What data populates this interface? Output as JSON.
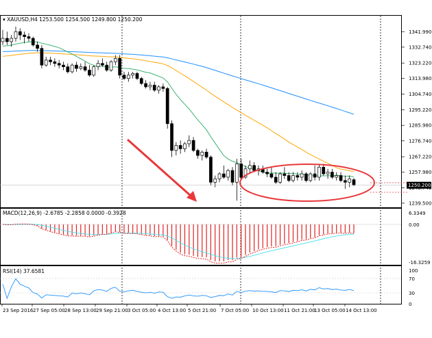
{
  "window": {
    "symbol_title": "XAUUSD,H4",
    "ohlc_text": "1253.500 1254.500 1249.800 1250.200",
    "current_price_label": "1250.200"
  },
  "price_axis": {
    "labels": [
      "1341.990",
      "1332.740",
      "1323.220",
      "1313.980",
      "1304.740",
      "1295.220",
      "1285.980",
      "1276.740",
      "1267.220",
      "1257.980",
      "1248.740",
      "1239.500"
    ]
  },
  "macd": {
    "title": "MACD(12,26,9) -2.6785 -2.2858 0.0000 -0.3928",
    "axis_labels": [
      "6.3349",
      "0.00",
      "-16.3259"
    ]
  },
  "rsi": {
    "title": "RSI(14) 37.6581",
    "axis_labels": [
      "100",
      "70",
      "30",
      "0"
    ]
  },
  "time_axis": {
    "labels": [
      "23 Sep 2016",
      "27 Sep 05:00",
      "28 Sep 13:00",
      "29 Sep 21:00",
      "3 Oct 05:00",
      "4 Oct 13:00",
      "5 Oct 21:00",
      "7 Oct 05:00",
      "10 Oct 13:00",
      "11 Oct 21:00",
      "13 Oct 05:00",
      "14 Oct 13:00"
    ]
  },
  "colors": {
    "ma_fast": "#3cb371",
    "ma_mid": "#ffa500",
    "ma_slow": "#1e90ff",
    "annotation": "#e8383a",
    "macd_pos": "#2ca02c",
    "macd_neg": "#e02020",
    "signal": "#40e0f0"
  },
  "chart_data": {
    "type": "candlestick",
    "series": [
      {
        "name": "XAUUSD,H4",
        "values_open_high_low_close": [
          [
            1336.0,
            1343.0,
            1334.0,
            1338.0
          ],
          [
            1338.0,
            1342.0,
            1334.0,
            1336.0
          ],
          [
            1336.0,
            1340.0,
            1333.0,
            1338.0
          ],
          [
            1338.0,
            1345.0,
            1336.0,
            1342.0
          ],
          [
            1342.0,
            1344.0,
            1337.0,
            1340.0
          ],
          [
            1340.0,
            1342.0,
            1335.0,
            1339.0
          ],
          [
            1339.0,
            1341.0,
            1336.0,
            1338.0
          ],
          [
            1338.0,
            1339.0,
            1333.0,
            1334.0
          ],
          [
            1334.0,
            1336.0,
            1330.0,
            1332.0
          ],
          [
            1332.0,
            1334.0,
            1320.0,
            1322.0
          ],
          [
            1322.0,
            1327.0,
            1321.0,
            1325.0
          ],
          [
            1325.0,
            1327.0,
            1322.0,
            1324.0
          ],
          [
            1324.0,
            1326.0,
            1321.0,
            1323.0
          ],
          [
            1323.0,
            1325.0,
            1320.0,
            1322.0
          ],
          [
            1322.0,
            1324.0,
            1319.0,
            1321.0
          ],
          [
            1321.0,
            1323.0,
            1317.0,
            1318.0
          ],
          [
            1318.0,
            1323.0,
            1317.0,
            1322.0
          ],
          [
            1322.0,
            1324.0,
            1318.0,
            1320.0
          ],
          [
            1320.0,
            1323.0,
            1319.0,
            1321.0
          ],
          [
            1321.0,
            1324.0,
            1318.0,
            1319.0
          ],
          [
            1319.0,
            1322.0,
            1315.0,
            1316.0
          ],
          [
            1316.0,
            1322.0,
            1315.0,
            1321.0
          ],
          [
            1321.0,
            1325.0,
            1319.0,
            1323.0
          ],
          [
            1323.0,
            1326.0,
            1321.0,
            1322.0
          ],
          [
            1322.0,
            1324.0,
            1318.0,
            1319.0
          ],
          [
            1319.0,
            1325.0,
            1318.0,
            1324.0
          ],
          [
            1324.0,
            1328.0,
            1322.0,
            1326.0
          ],
          [
            1326.0,
            1328.0,
            1314.0,
            1316.0
          ],
          [
            1316.0,
            1318.0,
            1313.0,
            1314.0
          ],
          [
            1314.0,
            1318.0,
            1312.0,
            1316.0
          ],
          [
            1316.0,
            1318.0,
            1314.0,
            1317.0
          ],
          [
            1317.0,
            1318.0,
            1313.0,
            1314.0
          ],
          [
            1314.0,
            1315.0,
            1310.0,
            1311.0
          ],
          [
            1311.0,
            1313.0,
            1308.0,
            1309.0
          ],
          [
            1309.0,
            1312.0,
            1307.0,
            1310.0
          ],
          [
            1310.0,
            1312.0,
            1306.0,
            1307.0
          ],
          [
            1307.0,
            1310.0,
            1305.0,
            1309.0
          ],
          [
            1309.0,
            1311.0,
            1306.0,
            1308.0
          ],
          [
            1308.0,
            1309.0,
            1284.0,
            1287.0
          ],
          [
            1287.0,
            1289.0,
            1267.0,
            1271.0
          ],
          [
            1271.0,
            1276.0,
            1268.0,
            1274.0
          ],
          [
            1274.0,
            1277.0,
            1269.0,
            1272.0
          ],
          [
            1272.0,
            1276.0,
            1270.0,
            1275.0
          ],
          [
            1275.0,
            1280.0,
            1273.0,
            1277.0
          ],
          [
            1277.0,
            1279.0,
            1270.0,
            1271.0
          ],
          [
            1271.0,
            1272.0,
            1266.0,
            1268.0
          ],
          [
            1268.0,
            1271.0,
            1265.0,
            1270.0
          ],
          [
            1270.0,
            1272.0,
            1266.0,
            1267.0
          ],
          [
            1267.0,
            1268.0,
            1250.0,
            1252.0
          ],
          [
            1252.0,
            1256.0,
            1249.0,
            1254.0
          ],
          [
            1254.0,
            1258.0,
            1252.0,
            1257.0
          ],
          [
            1257.0,
            1262.0,
            1254.0,
            1255.0
          ],
          [
            1255.0,
            1260.0,
            1253.0,
            1259.0
          ],
          [
            1259.0,
            1261.0,
            1250.0,
            1252.0
          ],
          [
            1252.0,
            1266.0,
            1241.0,
            1263.0
          ],
          [
            1263.0,
            1266.0,
            1253.0,
            1255.0
          ],
          [
            1255.0,
            1262.0,
            1254.0,
            1260.0
          ],
          [
            1260.0,
            1265.0,
            1257.0,
            1262.0
          ],
          [
            1262.0,
            1264.0,
            1258.0,
            1259.0
          ],
          [
            1259.0,
            1262.0,
            1256.0,
            1260.0
          ],
          [
            1260.0,
            1262.0,
            1257.0,
            1258.0
          ],
          [
            1258.0,
            1260.0,
            1255.0,
            1257.0
          ],
          [
            1257.0,
            1261.0,
            1254.0,
            1255.0
          ],
          [
            1255.0,
            1258.0,
            1251.0,
            1252.0
          ],
          [
            1252.0,
            1258.0,
            1251.0,
            1257.0
          ],
          [
            1257.0,
            1261.0,
            1254.0,
            1256.0
          ],
          [
            1256.0,
            1258.0,
            1252.0,
            1253.0
          ],
          [
            1253.0,
            1258.0,
            1252.0,
            1256.0
          ],
          [
            1256.0,
            1258.0,
            1253.0,
            1255.0
          ],
          [
            1255.0,
            1259.0,
            1253.0,
            1257.0
          ],
          [
            1257.0,
            1258.0,
            1252.0,
            1253.0
          ],
          [
            1253.0,
            1258.0,
            1252.0,
            1257.0
          ],
          [
            1257.0,
            1262.0,
            1253.0,
            1255.0
          ],
          [
            1255.0,
            1263.0,
            1253.0,
            1261.0
          ],
          [
            1261.0,
            1263.0,
            1256.0,
            1257.0
          ],
          [
            1257.0,
            1260.0,
            1254.0,
            1258.0
          ],
          [
            1258.0,
            1260.0,
            1254.0,
            1255.0
          ],
          [
            1255.0,
            1258.0,
            1253.0,
            1256.0
          ],
          [
            1256.0,
            1258.0,
            1252.0,
            1253.0
          ],
          [
            1253.0,
            1256.0,
            1248.0,
            1252.0
          ],
          [
            1252.0,
            1256.0,
            1249.0,
            1254.0
          ],
          [
            1253.5,
            1254.5,
            1249.8,
            1250.2
          ]
        ]
      }
    ],
    "ylim": [
      1237.0,
      1347.0
    ],
    "grid": false
  }
}
